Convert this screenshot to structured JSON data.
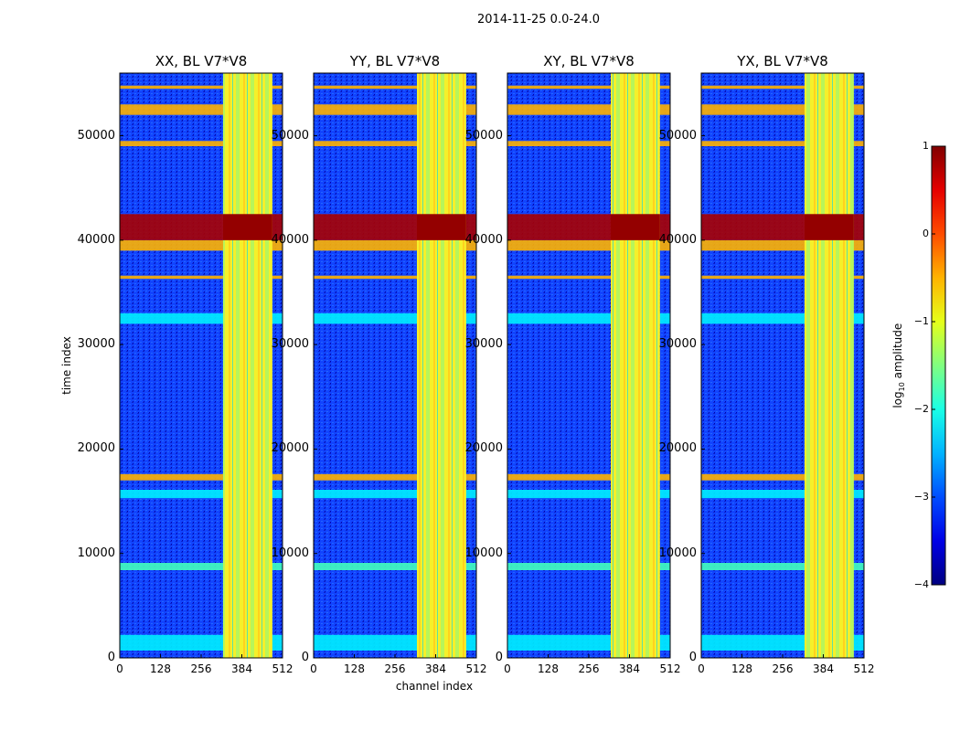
{
  "chart_data": {
    "type": "heatmap",
    "suptitle": "2014-11-25 0.0-24.0",
    "xlabel": "channel index",
    "ylabel": "time index",
    "xlim": [
      0,
      512
    ],
    "ylim": [
      0,
      56000
    ],
    "xticks": [
      "0",
      "128",
      "256",
      "384",
      "512"
    ],
    "yticks": [
      "0",
      "10000",
      "20000",
      "30000",
      "40000",
      "50000"
    ],
    "panels": [
      {
        "title": "XX, BL V7*V8",
        "rfi_block": [
          325,
          480
        ]
      },
      {
        "title": "YY, BL V7*V8",
        "rfi_block": [
          325,
          480
        ]
      },
      {
        "title": "XY, BL V7*V8",
        "rfi_block": [
          325,
          480
        ]
      },
      {
        "title": "YX, BL V7*V8",
        "rfi_block": [
          325,
          480
        ]
      }
    ],
    "rfi_rows": [
      {
        "from": 700,
        "to": 2200,
        "level": -2.2
      },
      {
        "from": 8400,
        "to": 9100,
        "level": -1.8
      },
      {
        "from": 15300,
        "to": 16100,
        "level": -2.2
      },
      {
        "from": 17000,
        "to": 17600,
        "level": -0.5
      },
      {
        "from": 32000,
        "to": 33000,
        "level": -2.2
      },
      {
        "from": 36300,
        "to": 36600,
        "level": -0.5
      },
      {
        "from": 39000,
        "to": 40000,
        "level": -0.5
      },
      {
        "from": 40000,
        "to": 42500,
        "level": 0.8
      },
      {
        "from": 49000,
        "to": 49500,
        "level": -0.5
      },
      {
        "from": 52000,
        "to": 53000,
        "level": -0.5
      },
      {
        "from": 54500,
        "to": 54800,
        "level": -0.5
      }
    ],
    "colorbar": {
      "label_prefix": "log",
      "label_sub": "10",
      "label_suffix": " amplitude",
      "ticks": [
        "1",
        "0",
        "−1",
        "−2",
        "−3",
        "−4"
      ],
      "range": [
        -4,
        1
      ],
      "colormap": "jet"
    }
  }
}
